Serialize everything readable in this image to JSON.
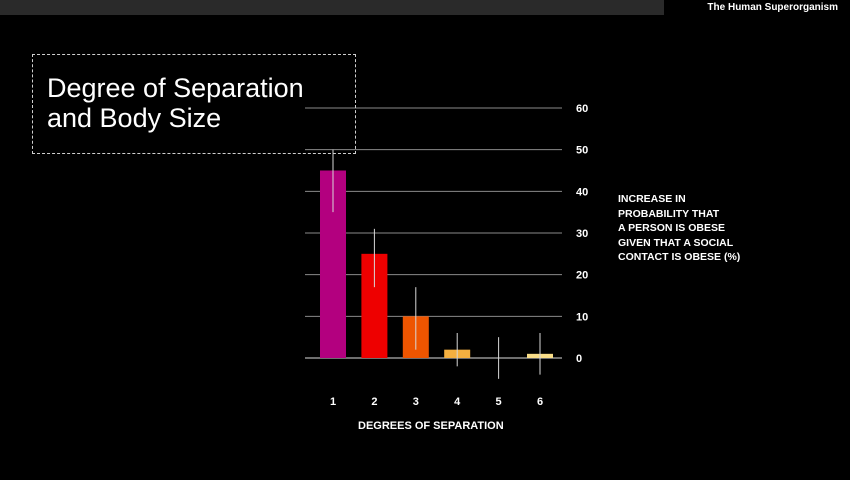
{
  "header": {
    "presentation_title": "The Human Superorganism"
  },
  "slide": {
    "title": "Degree of Separation\nand Body Size"
  },
  "chart_data": {
    "type": "bar",
    "categories": [
      "1",
      "2",
      "3",
      "4",
      "5",
      "6"
    ],
    "values": [
      45,
      25,
      10,
      2,
      0,
      1
    ],
    "error_low": [
      35,
      17,
      2,
      -2,
      -5,
      -4
    ],
    "error_high": [
      50,
      31,
      17,
      6,
      5,
      6
    ],
    "colors": [
      "#b3007f",
      "#ee0000",
      "#ee5500",
      "#f5b040",
      "#f5cc60",
      "#f9dd88"
    ],
    "xlabel": "DEGREES OF SEPARATION",
    "ylabel": "INCREASE IN\nPROBABILITY THAT\nA PERSON IS OBESE\nGIVEN THAT A SOCIAL\nCONTACT IS OBESE (%)",
    "yticks": [
      0,
      10,
      20,
      30,
      40,
      50,
      60
    ],
    "ylim": [
      0,
      60
    ],
    "grid": true,
    "y_axis_side": "right"
  }
}
